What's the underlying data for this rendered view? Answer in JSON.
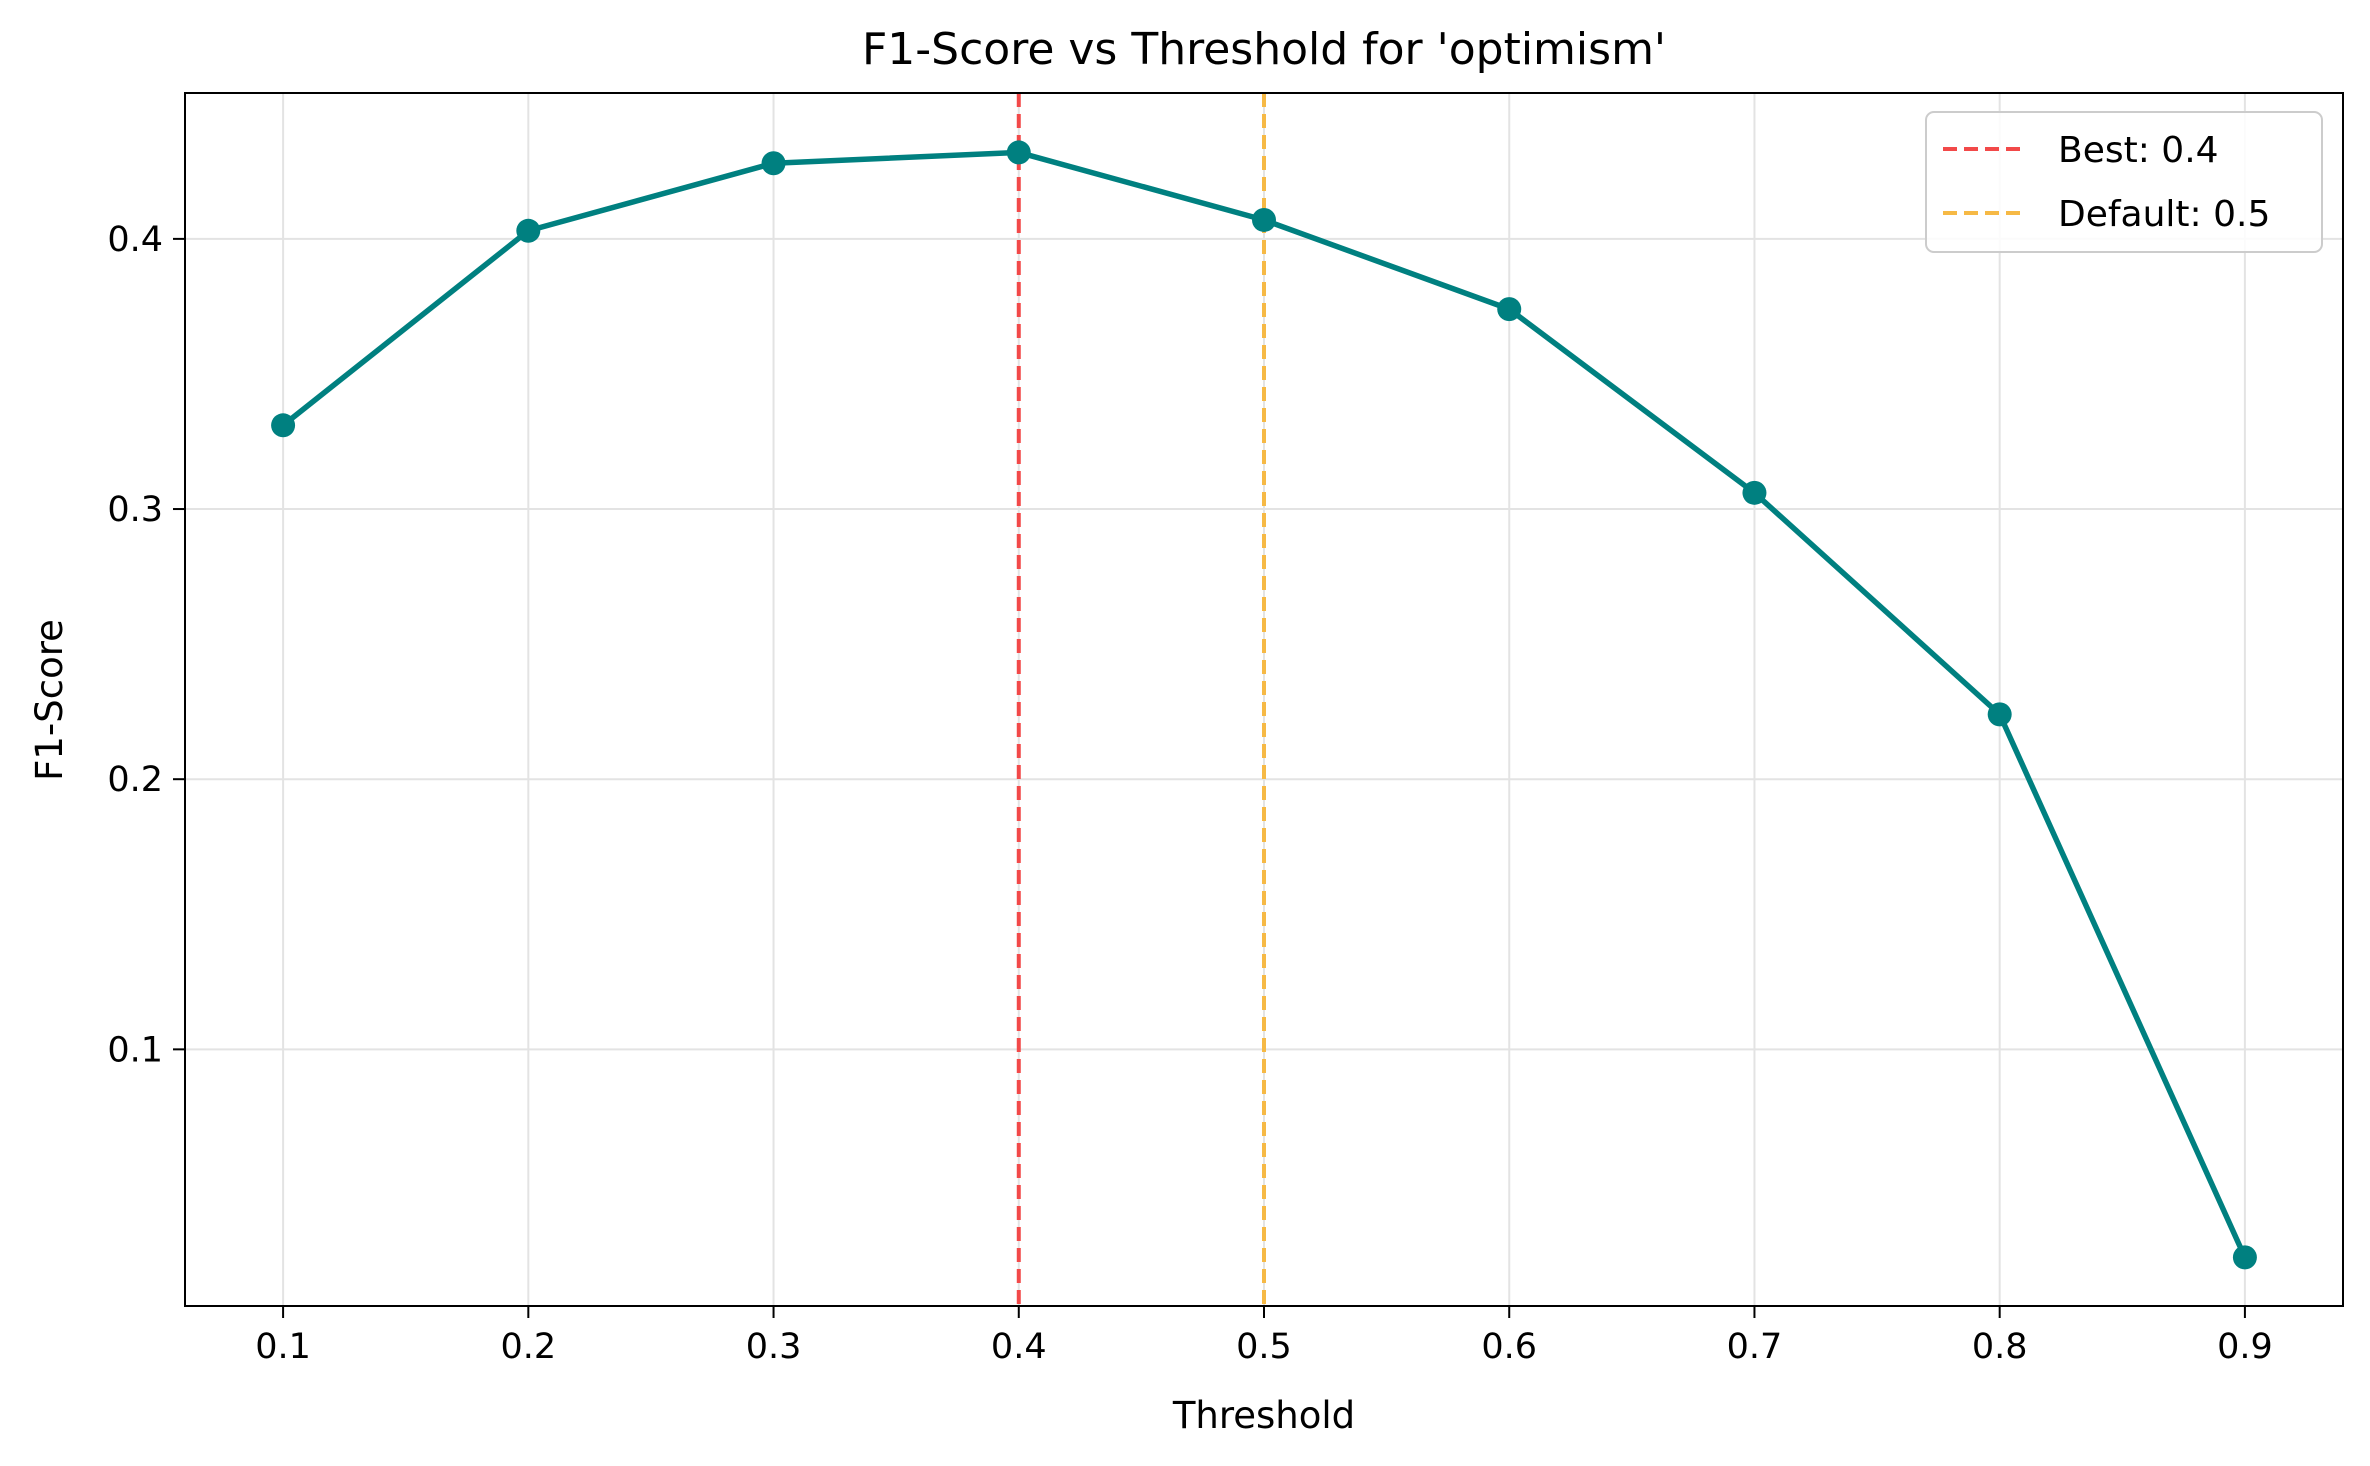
{
  "chart_data": {
    "type": "line",
    "title": "F1-Score vs Threshold for 'optimism'",
    "xlabel": "Threshold",
    "ylabel": "F1-Score",
    "x": [
      0.1,
      0.2,
      0.3,
      0.4,
      0.5,
      0.6,
      0.7,
      0.8,
      0.9
    ],
    "xlim": [
      0.06,
      0.94
    ],
    "ylim": [
      0.005,
      0.454
    ],
    "x_ticks": [
      "0.1",
      "0.2",
      "0.3",
      "0.4",
      "0.5",
      "0.6",
      "0.7",
      "0.8",
      "0.9"
    ],
    "y_ticks": [
      "0.1",
      "0.2",
      "0.3",
      "0.4"
    ],
    "grid": true,
    "series": [
      {
        "values": [
          0.331,
          0.403,
          0.428,
          0.432,
          0.407,
          0.374,
          0.306,
          0.224,
          0.023
        ],
        "color": "#008080",
        "marker": "circle"
      }
    ],
    "reference_lines": [
      {
        "x": 0.4,
        "label": "Best: 0.4",
        "color": "#f24949",
        "style": "dashed"
      },
      {
        "x": 0.5,
        "label": "Default: 0.5",
        "color": "#f6b945",
        "style": "dashed"
      }
    ],
    "legend": {
      "placement": "top-right"
    }
  }
}
